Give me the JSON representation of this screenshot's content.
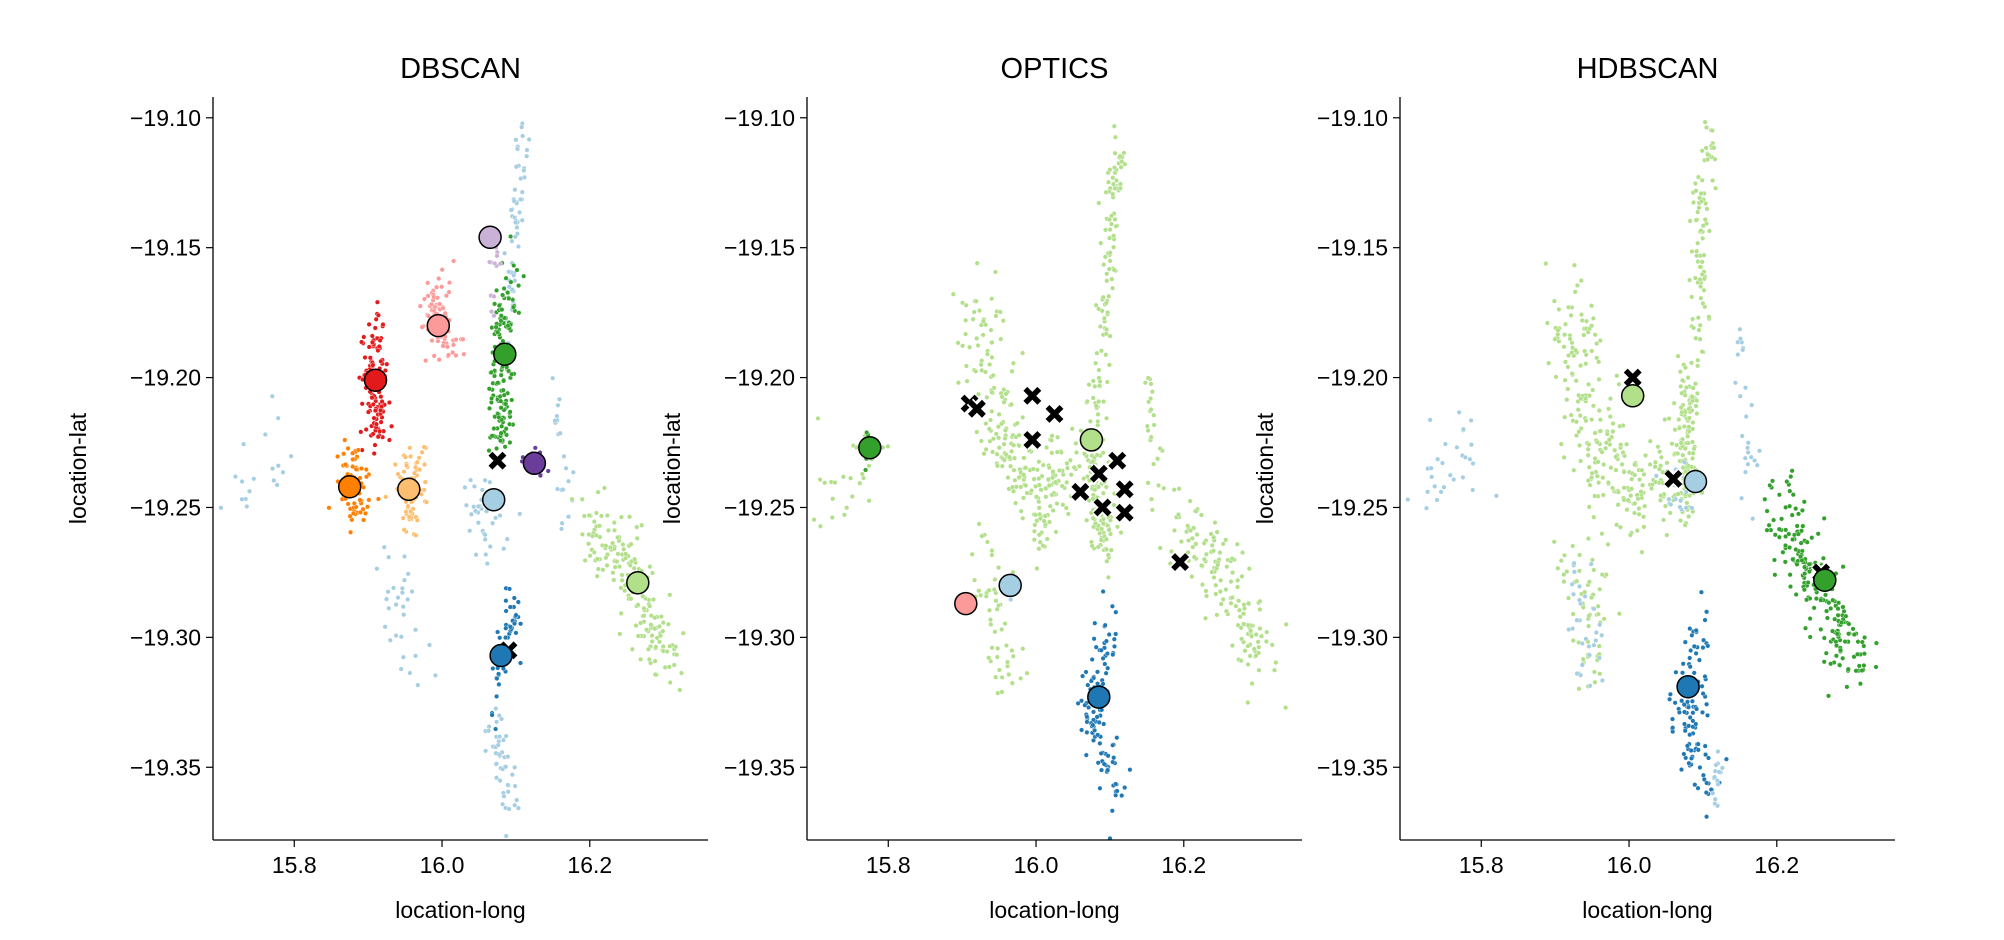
{
  "chart_data": [
    {
      "type": "scatter",
      "title": "DBSCAN",
      "xlabel": "location-long",
      "ylabel": "location-lat",
      "xlim": [
        15.69,
        16.36
      ],
      "ylim": [
        -19.378,
        -19.092
      ],
      "xticks": [
        "15.8",
        "16.0",
        "16.2"
      ],
      "yticks": [
        "−19.10",
        "−19.15",
        "−19.20",
        "−19.25",
        "−19.30",
        "−19.35"
      ],
      "grid": false,
      "legend": "none",
      "regions": [
        {
          "cluster": 0,
          "color": "#a6cee3",
          "count": 60,
          "spread": [
            0.008,
            0.012
          ],
          "path": [
            [
              16.11,
              -19.105
            ],
            [
              16.1,
              -19.14
            ],
            [
              16.09,
              -19.175
            ]
          ]
        },
        {
          "cluster": 0,
          "color": "#a6cee3",
          "count": 35,
          "spread": [
            0.025,
            0.01
          ],
          "path": [
            [
              16.05,
              -19.24
            ],
            [
              16.06,
              -19.265
            ]
          ]
        },
        {
          "cluster": 0,
          "color": "#a6cee3",
          "count": 30,
          "spread": [
            0.025,
            0.015
          ],
          "path": [
            [
              15.93,
              -19.275
            ],
            [
              15.96,
              -19.31
            ]
          ]
        },
        {
          "cluster": 0,
          "color": "#a6cee3",
          "count": 45,
          "spread": [
            0.012,
            0.01
          ],
          "path": [
            [
              16.06,
              -19.33
            ],
            [
              16.1,
              -19.365
            ]
          ]
        },
        {
          "cluster": 0,
          "color": "#a6cee3",
          "count": 18,
          "spread": [
            0.03,
            0.015
          ],
          "path": [
            [
              15.72,
              -19.245
            ],
            [
              15.8,
              -19.22
            ]
          ]
        },
        {
          "cluster": 0,
          "color": "#a6cee3",
          "count": 20,
          "spread": [
            0.008,
            0.012
          ],
          "path": [
            [
              16.15,
              -19.2
            ],
            [
              16.17,
              -19.25
            ]
          ]
        },
        {
          "cluster": 1,
          "color": "#1f78b4",
          "count": 55,
          "spread": [
            0.012,
            0.012
          ],
          "path": [
            [
              16.1,
              -19.29
            ],
            [
              16.07,
              -19.32
            ]
          ]
        },
        {
          "cluster": 2,
          "color": "#b2df8a",
          "count": 170,
          "spread": [
            0.022,
            0.013
          ],
          "path": [
            [
              16.2,
              -19.255
            ],
            [
              16.26,
              -19.28
            ],
            [
              16.31,
              -19.31
            ]
          ]
        },
        {
          "cluster": 3,
          "color": "#33a02c",
          "count": 160,
          "spread": [
            0.015,
            0.012
          ],
          "path": [
            [
              16.09,
              -19.165
            ],
            [
              16.08,
              -19.2
            ],
            [
              16.08,
              -19.225
            ]
          ]
        },
        {
          "cluster": 4,
          "color": "#fb9a99",
          "count": 90,
          "spread": [
            0.018,
            0.008
          ],
          "path": [
            [
              15.99,
              -19.165
            ],
            [
              16.0,
              -19.19
            ]
          ]
        },
        {
          "cluster": 5,
          "color": "#e31a1c",
          "count": 130,
          "spread": [
            0.015,
            0.01
          ],
          "path": [
            [
              15.91,
              -19.18
            ],
            [
              15.91,
              -19.22
            ]
          ]
        },
        {
          "cluster": 6,
          "color": "#fdbf6f",
          "count": 70,
          "spread": [
            0.02,
            0.008
          ],
          "path": [
            [
              15.96,
              -19.23
            ],
            [
              15.96,
              -19.255
            ]
          ]
        },
        {
          "cluster": 7,
          "color": "#ff7f00",
          "count": 70,
          "spread": [
            0.018,
            0.008
          ],
          "path": [
            [
              15.88,
              -19.23
            ],
            [
              15.88,
              -19.255
            ]
          ]
        },
        {
          "cluster": 8,
          "color": "#cab2d6",
          "count": 12,
          "spread": [
            0.006,
            0.008
          ],
          "path": [
            [
              16.07,
              -19.15
            ],
            [
              16.07,
              -19.17
            ]
          ]
        },
        {
          "cluster": 9,
          "color": "#6a3d9a",
          "count": 20,
          "spread": [
            0.01,
            0.003
          ],
          "path": [
            [
              16.12,
              -19.227
            ],
            [
              16.13,
              -19.237
            ]
          ]
        }
      ],
      "centroids": [
        {
          "x": 16.065,
          "y": -19.146,
          "color": "#cab2d6"
        },
        {
          "x": 15.995,
          "y": -19.18,
          "color": "#fb9a99"
        },
        {
          "x": 16.085,
          "y": -19.191,
          "color": "#33a02c"
        },
        {
          "x": 15.91,
          "y": -19.201,
          "color": "#e31a1c"
        },
        {
          "x": 16.125,
          "y": -19.233,
          "color": "#6a3d9a"
        },
        {
          "x": 15.875,
          "y": -19.242,
          "color": "#ff7f00"
        },
        {
          "x": 15.955,
          "y": -19.243,
          "color": "#fdbf6f"
        },
        {
          "x": 16.07,
          "y": -19.247,
          "color": "#a6cee3"
        },
        {
          "x": 16.265,
          "y": -19.279,
          "color": "#b2df8a"
        },
        {
          "x": 16.08,
          "y": -19.307,
          "color": "#1f78b4"
        }
      ],
      "noise_centroids": [
        {
          "x": 16.075,
          "y": -19.232
        },
        {
          "x": 16.09,
          "y": -19.305
        }
      ]
    },
    {
      "type": "scatter",
      "title": "OPTICS",
      "xlabel": "location-long",
      "ylabel": "location-lat",
      "xlim": [
        15.69,
        16.36
      ],
      "ylim": [
        -19.378,
        -19.092
      ],
      "xticks": [
        "15.8",
        "16.0",
        "16.2"
      ],
      "yticks": [
        "−19.10",
        "−19.15",
        "−19.20",
        "−19.25",
        "−19.30",
        "−19.35"
      ],
      "grid": false,
      "legend": "none",
      "regions": [
        {
          "cluster": 0,
          "color": "#b2df8a",
          "count": 90,
          "spread": [
            0.01,
            0.012
          ],
          "path": [
            [
              16.11,
              -19.105
            ],
            [
              16.1,
              -19.14
            ],
            [
              16.09,
              -19.19
            ]
          ]
        },
        {
          "cluster": 0,
          "color": "#b2df8a",
          "count": 260,
          "spread": [
            0.03,
            0.015
          ],
          "path": [
            [
              15.92,
              -19.17
            ],
            [
              15.95,
              -19.22
            ],
            [
              16.0,
              -19.25
            ],
            [
              16.06,
              -19.23
            ]
          ]
        },
        {
          "cluster": 0,
          "color": "#b2df8a",
          "count": 150,
          "spread": [
            0.022,
            0.013
          ],
          "path": [
            [
              16.2,
              -19.255
            ],
            [
              16.26,
              -19.28
            ],
            [
              16.31,
              -19.31
            ]
          ]
        },
        {
          "cluster": 0,
          "color": "#b2df8a",
          "count": 120,
          "spread": [
            0.012,
            0.012
          ],
          "path": [
            [
              16.08,
              -19.2
            ],
            [
              16.08,
              -19.25
            ],
            [
              16.1,
              -19.26
            ]
          ]
        },
        {
          "cluster": 0,
          "color": "#b2df8a",
          "count": 50,
          "spread": [
            0.025,
            0.015
          ],
          "path": [
            [
              15.93,
              -19.27
            ],
            [
              15.96,
              -19.31
            ]
          ]
        },
        {
          "cluster": 0,
          "color": "#b2df8a",
          "count": 25,
          "spread": [
            0.03,
            0.015
          ],
          "path": [
            [
              15.72,
              -19.245
            ],
            [
              15.8,
              -19.22
            ]
          ]
        },
        {
          "cluster": 0,
          "color": "#b2df8a",
          "count": 25,
          "spread": [
            0.008,
            0.012
          ],
          "path": [
            [
              16.15,
              -19.2
            ],
            [
              16.17,
              -19.25
            ]
          ]
        },
        {
          "cluster": 1,
          "color": "#1f78b4",
          "count": 110,
          "spread": [
            0.015,
            0.012
          ],
          "path": [
            [
              16.1,
              -19.295
            ],
            [
              16.07,
              -19.33
            ],
            [
              16.11,
              -19.36
            ]
          ]
        },
        {
          "cluster": 2,
          "color": "#33a02c",
          "count": 6,
          "spread": [
            0.004,
            0.008
          ],
          "path": [
            [
              15.77,
              -19.22
            ],
            [
              15.77,
              -19.24
            ]
          ]
        },
        {
          "cluster": 3,
          "color": "#fb9a99",
          "count": 4,
          "spread": [
            0.004,
            0.004
          ],
          "path": [
            [
              15.9,
              -19.285
            ],
            [
              15.91,
              -19.29
            ]
          ]
        },
        {
          "cluster": 4,
          "color": "#a6cee3",
          "count": 4,
          "spread": [
            0.004,
            0.004
          ],
          "path": [
            [
              15.96,
              -19.28
            ],
            [
              15.97,
              -19.285
            ]
          ]
        }
      ],
      "centroids": [
        {
          "x": 15.775,
          "y": -19.227,
          "color": "#33a02c"
        },
        {
          "x": 16.075,
          "y": -19.224,
          "color": "#b2df8a"
        },
        {
          "x": 15.965,
          "y": -19.28,
          "color": "#a6cee3"
        },
        {
          "x": 15.905,
          "y": -19.287,
          "color": "#fb9a99"
        },
        {
          "x": 16.085,
          "y": -19.323,
          "color": "#1f78b4"
        }
      ],
      "noise_centroids": [
        {
          "x": 15.91,
          "y": -19.21
        },
        {
          "x": 15.92,
          "y": -19.212
        },
        {
          "x": 15.995,
          "y": -19.207
        },
        {
          "x": 16.025,
          "y": -19.214
        },
        {
          "x": 15.995,
          "y": -19.224
        },
        {
          "x": 16.11,
          "y": -19.232
        },
        {
          "x": 16.085,
          "y": -19.237
        },
        {
          "x": 16.06,
          "y": -19.244
        },
        {
          "x": 16.12,
          "y": -19.243
        },
        {
          "x": 16.09,
          "y": -19.25
        },
        {
          "x": 16.12,
          "y": -19.252
        },
        {
          "x": 16.195,
          "y": -19.271
        }
      ]
    },
    {
      "type": "scatter",
      "title": "HDBSCAN",
      "xlabel": "location-long",
      "ylabel": "location-lat",
      "xlim": [
        15.69,
        16.36
      ],
      "ylim": [
        -19.378,
        -19.092
      ],
      "xticks": [
        "15.8",
        "16.0",
        "16.2"
      ],
      "yticks": [
        "−19.10",
        "−19.15",
        "−19.20",
        "−19.25",
        "−19.30",
        "−19.35"
      ],
      "grid": false,
      "legend": "none",
      "regions": [
        {
          "cluster": 0,
          "color": "#b2df8a",
          "count": 90,
          "spread": [
            0.01,
            0.012
          ],
          "path": [
            [
              16.11,
              -19.105
            ],
            [
              16.1,
              -19.14
            ],
            [
              16.09,
              -19.19
            ]
          ]
        },
        {
          "cluster": 0,
          "color": "#b2df8a",
          "count": 260,
          "spread": [
            0.03,
            0.015
          ],
          "path": [
            [
              15.92,
              -19.17
            ],
            [
              15.95,
              -19.22
            ],
            [
              16.0,
              -19.25
            ],
            [
              16.06,
              -19.23
            ]
          ]
        },
        {
          "cluster": 0,
          "color": "#b2df8a",
          "count": 120,
          "spread": [
            0.012,
            0.012
          ],
          "path": [
            [
              16.08,
              -19.2
            ],
            [
              16.08,
              -19.25
            ]
          ]
        },
        {
          "cluster": 0,
          "color": "#b2df8a",
          "count": 60,
          "spread": [
            0.025,
            0.015
          ],
          "path": [
            [
              15.93,
              -19.27
            ],
            [
              15.96,
              -19.31
            ]
          ]
        },
        {
          "cluster": 1,
          "color": "#33a02c",
          "count": 200,
          "spread": [
            0.022,
            0.013
          ],
          "path": [
            [
              16.2,
              -19.25
            ],
            [
              16.26,
              -19.28
            ],
            [
              16.31,
              -19.31
            ]
          ]
        },
        {
          "cluster": 2,
          "color": "#1f78b4",
          "count": 110,
          "spread": [
            0.015,
            0.012
          ],
          "path": [
            [
              16.1,
              -19.295
            ],
            [
              16.07,
              -19.33
            ],
            [
              16.11,
              -19.355
            ]
          ]
        },
        {
          "cluster": 3,
          "color": "#a6cee3",
          "count": 30,
          "spread": [
            0.03,
            0.015
          ],
          "path": [
            [
              15.72,
              -19.245
            ],
            [
              15.8,
              -19.22
            ]
          ]
        },
        {
          "cluster": 3,
          "color": "#a6cee3",
          "count": 30,
          "spread": [
            0.02,
            0.015
          ],
          "path": [
            [
              15.92,
              -19.27
            ],
            [
              15.95,
              -19.31
            ]
          ]
        },
        {
          "cluster": 3,
          "color": "#a6cee3",
          "count": 25,
          "spread": [
            0.008,
            0.012
          ],
          "path": [
            [
              16.15,
              -19.19
            ],
            [
              16.17,
              -19.25
            ]
          ]
        },
        {
          "cluster": 3,
          "color": "#a6cee3",
          "count": 20,
          "spread": [
            0.012,
            0.01
          ],
          "path": [
            [
              16.06,
              -19.24
            ],
            [
              16.08,
              -19.25
            ]
          ]
        },
        {
          "cluster": 3,
          "color": "#a6cee3",
          "count": 15,
          "spread": [
            0.008,
            0.01
          ],
          "path": [
            [
              16.12,
              -19.35
            ],
            [
              16.12,
              -19.365
            ]
          ]
        }
      ],
      "centroids": [
        {
          "x": 16.005,
          "y": -19.207,
          "color": "#b2df8a"
        },
        {
          "x": 16.09,
          "y": -19.24,
          "color": "#a6cee3"
        },
        {
          "x": 16.265,
          "y": -19.278,
          "color": "#33a02c"
        },
        {
          "x": 16.08,
          "y": -19.319,
          "color": "#1f78b4"
        }
      ],
      "noise_centroids": [
        {
          "x": 16.005,
          "y": -19.2
        },
        {
          "x": 16.06,
          "y": -19.239
        },
        {
          "x": 16.26,
          "y": -19.275
        }
      ]
    }
  ]
}
